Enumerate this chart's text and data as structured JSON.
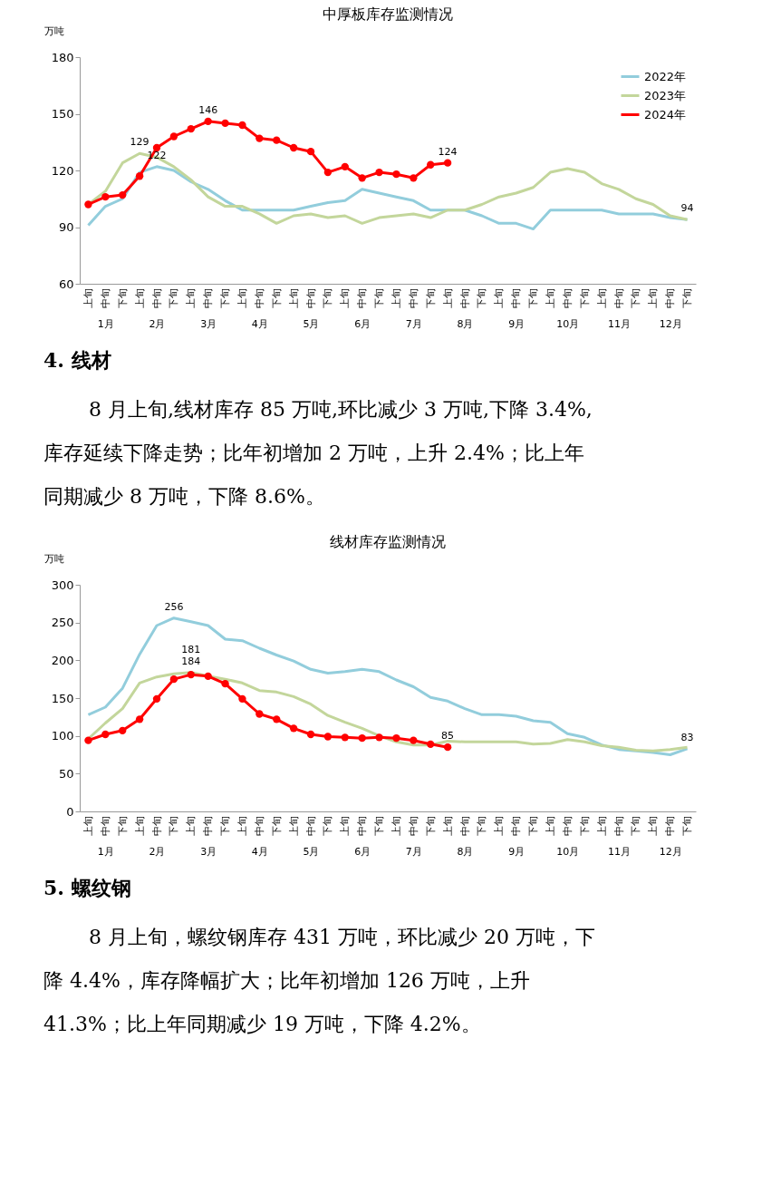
{
  "chart_data": [
    {
      "type": "line",
      "title": "中厚板库存监测情况",
      "ylabel": "万吨",
      "categories": [
        "上旬",
        "中旬",
        "下旬",
        "上旬",
        "中旬",
        "下旬",
        "上旬",
        "中旬",
        "下旬",
        "上旬",
        "中旬",
        "下旬",
        "上旬",
        "中旬",
        "下旬",
        "上旬",
        "中旬",
        "下旬",
        "上旬",
        "中旬",
        "下旬",
        "上旬",
        "中旬",
        "下旬",
        "上旬",
        "中旬",
        "下旬",
        "上旬",
        "中旬",
        "下旬",
        "上旬",
        "中旬",
        "下旬",
        "上旬",
        "中旬",
        "下旬"
      ],
      "series": [
        {
          "name": "2022年",
          "color": "#92cddc",
          "values": [
            91,
            101,
            105,
            119,
            122,
            120,
            114,
            110,
            104,
            99,
            99,
            99,
            99,
            101,
            103,
            104,
            110,
            108,
            106,
            104,
            99,
            99,
            99,
            96,
            92,
            92,
            89,
            99,
            99,
            99,
            99,
            97,
            97,
            97,
            95,
            94
          ],
          "value_labels": [
            null,
            null,
            null,
            null,
            "122",
            null,
            null,
            null,
            null,
            null,
            null,
            null,
            null,
            null,
            null,
            null,
            null,
            null,
            null,
            null,
            null,
            null,
            null,
            null,
            null,
            null,
            null,
            null,
            null,
            null,
            null,
            null,
            null,
            null,
            null,
            null
          ]
        },
        {
          "name": "2023年",
          "color": "#c3d69b",
          "values": [
            102,
            109,
            124,
            129,
            127,
            122,
            115,
            106,
            101,
            101,
            97,
            92,
            96,
            97,
            95,
            96,
            92,
            95,
            96,
            97,
            95,
            99,
            99,
            102,
            106,
            108,
            111,
            119,
            121,
            119,
            113,
            110,
            105,
            102,
            96,
            94
          ],
          "value_labels": [
            null,
            null,
            null,
            "129",
            null,
            null,
            null,
            null,
            null,
            null,
            null,
            null,
            null,
            null,
            null,
            null,
            null,
            null,
            null,
            null,
            null,
            null,
            null,
            null,
            null,
            null,
            null,
            null,
            null,
            null,
            null,
            null,
            null,
            null,
            null,
            "94"
          ]
        },
        {
          "name": "2024年",
          "color": "#ff0000",
          "marker": "circle",
          "values": [
            102,
            106,
            107,
            117,
            132,
            138,
            142,
            146,
            145,
            144,
            137,
            136,
            132,
            130,
            119,
            122,
            116,
            119,
            118,
            116,
            123,
            124,
            null,
            null,
            null,
            null,
            null,
            null,
            null,
            null,
            null,
            null,
            null,
            null,
            null,
            null
          ],
          "value_labels": [
            null,
            null,
            null,
            null,
            null,
            null,
            null,
            "146",
            null,
            null,
            null,
            null,
            null,
            null,
            null,
            null,
            null,
            null,
            null,
            null,
            null,
            "124",
            null,
            null,
            null,
            null,
            null,
            null,
            null,
            null,
            null,
            null,
            null,
            null,
            null,
            null
          ]
        }
      ],
      "ylim": [
        60,
        180
      ],
      "yticks": [
        60,
        90,
        120,
        150,
        180
      ],
      "grid": false,
      "legend": "top right",
      "line_style": "solid",
      "x2lim": [
        0,
        12
      ],
      "x2ticks": [
        {
          "value": 0.5,
          "label": "1月"
        },
        {
          "value": 1.5,
          "label": "2月"
        },
        {
          "value": 2.5,
          "label": "3月"
        },
        {
          "value": 3.5,
          "label": "4月"
        },
        {
          "value": 4.5,
          "label": "5月"
        },
        {
          "value": 5.5,
          "label": "6月"
        },
        {
          "value": 6.5,
          "label": "7月"
        },
        {
          "value": 7.5,
          "label": "8月"
        },
        {
          "value": 8.5,
          "label": "9月"
        },
        {
          "value": 9.5,
          "label": "10月"
        },
        {
          "value": 10.5,
          "label": "11月"
        },
        {
          "value": 11.5,
          "label": "12月"
        }
      ]
    },
    {
      "type": "other",
      "title": "4. 线材",
      "annotations": [
        "8 月上旬,线材库存 85 万吨,环比减少 3 万吨,下降 3.4%,",
        "库存延续下降走势；比年初增加 2 万吨，上升 2.4%；比上年",
        "同期减少 8 万吨，下降 8.6%。"
      ]
    },
    {
      "type": "line",
      "title": "线材库存监测情况",
      "ylabel": "万吨",
      "categories": [
        "上旬",
        "中旬",
        "下旬",
        "上旬",
        "中旬",
        "下旬",
        "上旬",
        "中旬",
        "下旬",
        "上旬",
        "中旬",
        "下旬",
        "上旬",
        "中旬",
        "下旬",
        "上旬",
        "中旬",
        "下旬",
        "上旬",
        "中旬",
        "下旬",
        "上旬",
        "中旬",
        "下旬",
        "上旬",
        "中旬",
        "下旬",
        "上旬",
        "中旬",
        "下旬",
        "上旬",
        "中旬",
        "下旬",
        "上旬",
        "中旬",
        "下旬"
      ],
      "series": [
        {
          "name": "2022年",
          "color": "#92cddc",
          "values": [
            128,
            138,
            163,
            208,
            246,
            256,
            251,
            246,
            228,
            226,
            216,
            207,
            199,
            188,
            183,
            185,
            188,
            185,
            174,
            165,
            151,
            146,
            136,
            128,
            128,
            126,
            120,
            118,
            103,
            98,
            88,
            82,
            80,
            78,
            75,
            83
          ],
          "value_labels": [
            null,
            null,
            null,
            null,
            null,
            "256",
            null,
            null,
            null,
            null,
            null,
            null,
            null,
            null,
            null,
            null,
            null,
            null,
            null,
            null,
            null,
            null,
            null,
            null,
            null,
            null,
            null,
            null,
            null,
            null,
            null,
            null,
            null,
            null,
            null,
            "83"
          ]
        },
        {
          "name": "2023年",
          "color": "#c3d69b",
          "values": [
            96,
            117,
            136,
            170,
            178,
            182,
            184,
            179,
            175,
            170,
            160,
            158,
            152,
            142,
            127,
            118,
            110,
            100,
            92,
            88,
            88,
            93,
            92,
            92,
            92,
            92,
            89,
            90,
            95,
            92,
            87,
            85,
            81,
            80,
            82,
            85
          ],
          "value_labels": [
            null,
            null,
            null,
            null,
            null,
            null,
            "184",
            null,
            null,
            null,
            null,
            null,
            null,
            null,
            null,
            null,
            null,
            null,
            null,
            null,
            null,
            null,
            null,
            null,
            null,
            null,
            null,
            null,
            null,
            null,
            null,
            null,
            null,
            null,
            null,
            null
          ]
        },
        {
          "name": "2024年",
          "color": "#ff0000",
          "marker": "circle",
          "values": [
            94,
            102,
            107,
            122,
            149,
            175,
            181,
            179,
            169,
            149,
            129,
            122,
            110,
            102,
            99,
            98,
            97,
            98,
            97,
            94,
            89,
            85,
            null,
            null,
            null,
            null,
            null,
            null,
            null,
            null,
            null,
            null,
            null,
            null,
            null,
            null
          ],
          "value_labels": [
            null,
            null,
            null,
            null,
            null,
            null,
            "181",
            null,
            null,
            null,
            null,
            null,
            null,
            null,
            null,
            null,
            null,
            null,
            null,
            null,
            null,
            "85",
            null,
            null,
            null,
            null,
            null,
            null,
            null,
            null,
            null,
            null,
            null,
            null,
            null,
            null
          ]
        }
      ],
      "ylim": [
        0,
        300
      ],
      "yticks": [
        0,
        50,
        100,
        150,
        200,
        250,
        300
      ],
      "grid": false,
      "legend": "top right",
      "line_style": "solid",
      "x2lim": [
        0,
        12
      ],
      "x2ticks": [
        {
          "value": 0.5,
          "label": "1月"
        },
        {
          "value": 1.5,
          "label": "2月"
        },
        {
          "value": 2.5,
          "label": "3月"
        },
        {
          "value": 3.5,
          "label": "4月"
        },
        {
          "value": 4.5,
          "label": "5月"
        },
        {
          "value": 5.5,
          "label": "6月"
        },
        {
          "value": 6.5,
          "label": "7月"
        },
        {
          "value": 7.5,
          "label": "8月"
        },
        {
          "value": 8.5,
          "label": "9月"
        },
        {
          "value": 9.5,
          "label": "10月"
        },
        {
          "value": 10.5,
          "label": "11月"
        },
        {
          "value": 11.5,
          "label": "12月"
        }
      ]
    },
    {
      "type": "other",
      "title": "5. 螺纹钢",
      "annotations": [
        "8 月上旬，螺纹钢库存 431 万吨，环比减少 20 万吨，下",
        "降 4.4%，库存降幅扩大；比年初增加 126 万吨，上升",
        "41.3%；比上年同期减少 19 万吨，下降 4.2%。"
      ]
    }
  ]
}
